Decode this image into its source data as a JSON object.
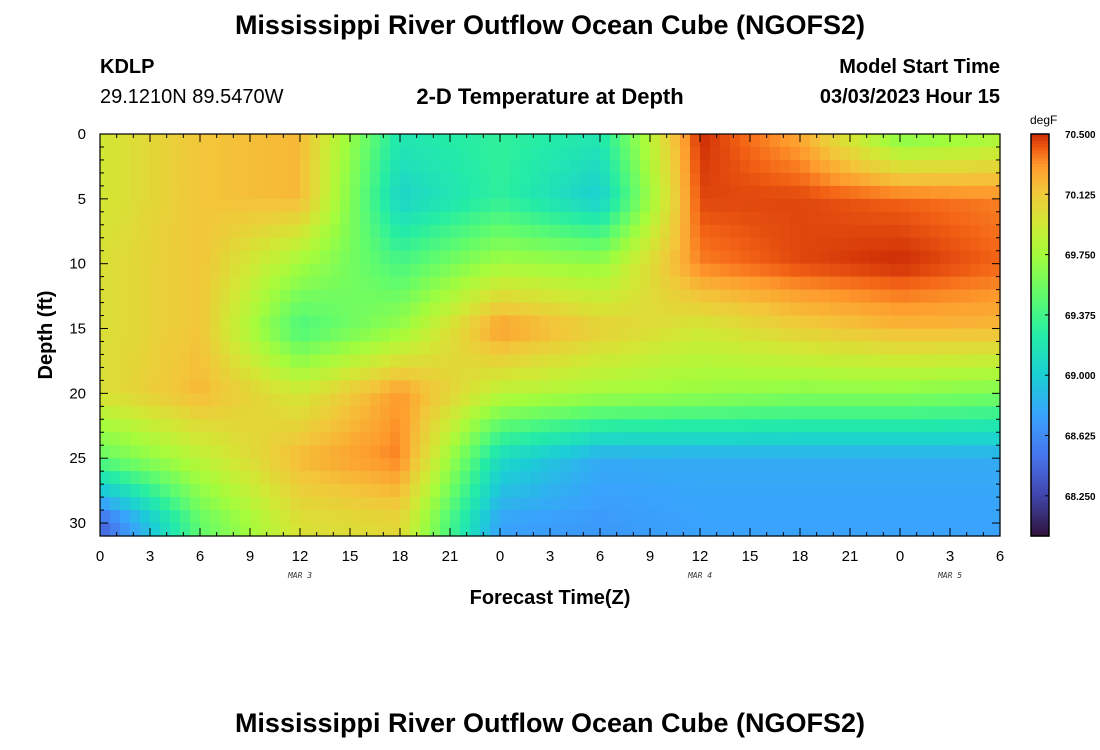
{
  "header": {
    "title": "Mississippi River Outflow Ocean Cube (NGOFS2)",
    "station_id": "KDLP",
    "station_location": "29.1210N  89.5470W",
    "subtitle": "2-D Temperature at Depth",
    "model_label": "Model Start Time",
    "model_start": "03/03/2023 Hour 15"
  },
  "footer": {
    "title": "Mississippi River Outflow Ocean Cube (NGOFS2)"
  },
  "colors": {
    "frame": "#000000",
    "background": "#ffffff"
  },
  "chart_data": {
    "type": "heatmap",
    "title": "2-D Temperature at Depth",
    "xlabel": "Forecast Time(Z)",
    "ylabel": "Depth (ft)",
    "x_range_hours": [
      0,
      54
    ],
    "x_ticks": [
      "0",
      "3",
      "6",
      "9",
      "12",
      "15",
      "18",
      "21",
      "0",
      "3",
      "6",
      "9",
      "12",
      "15",
      "18",
      "21",
      "0",
      "3",
      "6"
    ],
    "date_labels": [
      {
        "label": "MAR 3",
        "hour": 12
      },
      {
        "label": "MAR 4",
        "hour": 36
      },
      {
        "label": "MAR 5",
        "hour": 51
      }
    ],
    "y_range_ft": [
      0,
      31
    ],
    "y_ticks": [
      "0",
      "5",
      "10",
      "15",
      "20",
      "25",
      "30"
    ],
    "colorbar": {
      "unit": "degF",
      "min": 68.0,
      "max": 70.5,
      "tick_labels": [
        "70.500",
        "70.125",
        "69.750",
        "69.375",
        "69.000",
        "68.625",
        "68.250"
      ]
    },
    "x_hours": [
      0,
      6,
      12,
      18,
      24,
      30,
      36,
      42,
      48,
      54
    ],
    "depths_ft": [
      0,
      5,
      10,
      15,
      20,
      25,
      30
    ],
    "values_degF": [
      [
        69.95,
        70.15,
        70.2,
        69.2,
        69.3,
        69.2,
        70.5,
        70.25,
        69.6,
        69.75
      ],
      [
        69.95,
        70.15,
        70.2,
        69.05,
        69.3,
        69.0,
        70.45,
        70.45,
        70.4,
        70.35
      ],
      [
        70.0,
        70.15,
        69.75,
        69.4,
        69.75,
        69.7,
        70.35,
        70.45,
        70.5,
        70.4
      ],
      [
        70.0,
        70.15,
        69.4,
        69.7,
        70.3,
        70.1,
        69.95,
        70.1,
        70.2,
        70.2
      ],
      [
        70.0,
        70.2,
        69.95,
        70.3,
        69.85,
        69.75,
        69.7,
        69.65,
        69.65,
        69.6
      ],
      [
        69.5,
        69.85,
        70.2,
        70.35,
        69.1,
        68.8,
        68.8,
        68.8,
        68.8,
        68.8
      ],
      [
        68.4,
        69.5,
        70.0,
        70.05,
        68.75,
        68.7,
        68.75,
        68.75,
        68.75,
        68.75
      ]
    ]
  }
}
